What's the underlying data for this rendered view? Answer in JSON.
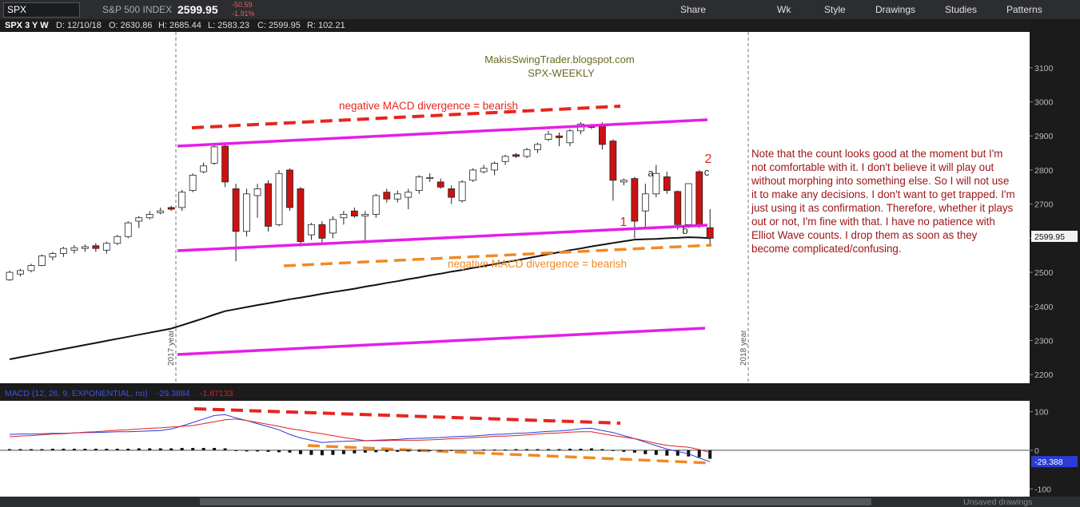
{
  "toolbar": {
    "symbol": "SPX",
    "description": "S&P 500 INDEX",
    "last": "2599.95",
    "change": "-50.59",
    "change_pct": "-1.91%",
    "buttons": [
      "Share",
      "Wk",
      "Style",
      "Drawings",
      "Studies",
      "Patterns"
    ]
  },
  "info_bar": {
    "symbol": "SPX 3 Y W",
    "fields": [
      "D: 12/10/18",
      "O: 2630.86",
      "H: 2685.44",
      "L: 2583.23",
      "C: 2599.95",
      "R: 102.21"
    ]
  },
  "chart_data": [
    {
      "type": "candlestick",
      "title": "MakisSwingTrader.blogspot.com",
      "subtitle": "SPX-WEEKLY",
      "annotations": [
        "negative MACD divergence = bearish",
        "negative MACD divergence = bearish",
        "1",
        "2",
        "a",
        "b",
        "c"
      ],
      "note": "Note that the count looks good at the moment but I'm not comfortable with it. I don't believe it will play out without morphing into something else. So I will not use it to make any decisions. I don't want to get trapped. I'm just using it as confirmation. Therefore, whether it plays out or not, I'm fine with that. I have no patience with Elliot Wave counts. I drop them as soon as they become complicated/confusing.",
      "year_labels": [
        "2017 year",
        "2018 year"
      ],
      "up_color": "#ffffff",
      "down_color": "#cc1111",
      "open": [
        2478,
        2495,
        2505,
        2520,
        2545,
        2555,
        2565,
        2570,
        2578,
        2565,
        2585,
        2605,
        2650,
        2660,
        2675,
        2690,
        2690,
        2740,
        2795,
        2820,
        2870,
        2745,
        2620,
        2725,
        2760,
        2640,
        2800,
        2745,
        2610,
        2640,
        2615,
        2660,
        2680,
        2665,
        2670,
        2735,
        2715,
        2720,
        2740,
        2775,
        2765,
        2745,
        2710,
        2770,
        2795,
        2800,
        2825,
        2845,
        2840,
        2860,
        2890,
        2900,
        2880,
        2915,
        2930,
        2930,
        2885,
        2765,
        2775,
        2680,
        2730,
        2780,
        2737,
        2640,
        2795,
        2630.86
      ],
      "high": [
        2505,
        2510,
        2525,
        2552,
        2560,
        2575,
        2580,
        2582,
        2585,
        2590,
        2610,
        2650,
        2665,
        2680,
        2690,
        2695,
        2742,
        2790,
        2822,
        2875,
        2878,
        2760,
        2745,
        2760,
        2770,
        2800,
        2805,
        2750,
        2645,
        2650,
        2665,
        2680,
        2690,
        2680,
        2730,
        2745,
        2740,
        2745,
        2785,
        2790,
        2775,
        2755,
        2770,
        2805,
        2815,
        2825,
        2845,
        2850,
        2865,
        2880,
        2915,
        2910,
        2920,
        2940,
        2935,
        2940,
        2890,
        2775,
        2780,
        2760,
        2815,
        2795,
        2740,
        2760,
        2800,
        2685.44
      ],
      "low": [
        2475,
        2488,
        2500,
        2518,
        2535,
        2545,
        2555,
        2560,
        2560,
        2555,
        2580,
        2600,
        2630,
        2655,
        2670,
        2680,
        2680,
        2735,
        2790,
        2815,
        2750,
        2532,
        2605,
        2660,
        2620,
        2635,
        2680,
        2575,
        2595,
        2585,
        2600,
        2640,
        2660,
        2590,
        2660,
        2705,
        2705,
        2685,
        2730,
        2765,
        2745,
        2700,
        2705,
        2765,
        2790,
        2785,
        2815,
        2835,
        2835,
        2850,
        2885,
        2870,
        2870,
        2905,
        2920,
        2860,
        2710,
        2755,
        2600,
        2630,
        2720,
        2730,
        2625,
        2630,
        2630,
        2583.23
      ],
      "close": [
        2500,
        2505,
        2520,
        2548,
        2555,
        2570,
        2572,
        2575,
        2570,
        2585,
        2605,
        2645,
        2660,
        2670,
        2680,
        2685,
        2735,
        2785,
        2812,
        2868,
        2765,
        2620,
        2730,
        2745,
        2635,
        2790,
        2690,
        2590,
        2640,
        2600,
        2655,
        2670,
        2665,
        2670,
        2725,
        2715,
        2730,
        2735,
        2780,
        2778,
        2750,
        2720,
        2765,
        2800,
        2805,
        2820,
        2840,
        2840,
        2860,
        2875,
        2905,
        2895,
        2915,
        2935,
        2925,
        2875,
        2770,
        2770,
        2650,
        2730,
        2790,
        2740,
        2640,
        2760,
        2635,
        2599.95
      ],
      "ma": {
        "color": "#111111",
        "values": [
          2245,
          2251,
          2257,
          2263,
          2269,
          2275,
          2281,
          2287,
          2293,
          2299,
          2305,
          2311,
          2317,
          2323,
          2329,
          2335,
          2345,
          2355,
          2365,
          2376,
          2386,
          2392,
          2398,
          2404,
          2409,
          2415,
          2421,
          2426,
          2431,
          2437,
          2442,
          2447,
          2452,
          2458,
          2463,
          2469,
          2474,
          2480,
          2485,
          2491,
          2496,
          2502,
          2507,
          2513,
          2518,
          2524,
          2530,
          2535,
          2541,
          2547,
          2553,
          2559,
          2565,
          2570,
          2576,
          2581,
          2586,
          2591,
          2596,
          2597,
          2598,
          2600,
          2601,
          2603,
          2602,
          2600
        ]
      },
      "ylim": [
        2177,
        3205
      ],
      "yticks": [
        2200,
        2300,
        2400,
        2500,
        2600,
        2700,
        2800,
        2900,
        3000,
        3100
      ]
    },
    {
      "type": "macd",
      "title": "MACD (12, 26, 9, EXPONENTIAL, no)",
      "readouts": [
        "-29.3884",
        "-1.67133"
      ],
      "last_label": "-29.388",
      "ylim": [
        -120,
        126
      ],
      "yticks": [
        100,
        0,
        -100
      ],
      "series": [
        {
          "color": "#2a3bd6",
          "values": [
            41,
            42,
            42,
            43,
            44,
            44,
            45,
            46,
            46,
            47,
            48,
            48,
            49,
            50,
            51,
            55,
            63,
            72,
            81,
            90,
            92,
            84,
            77,
            69,
            61,
            53,
            41,
            32,
            26,
            20,
            22,
            23,
            24,
            25,
            26,
            27,
            28,
            30,
            31,
            32,
            33,
            35,
            36,
            37,
            39,
            41,
            42,
            44,
            45,
            47,
            49,
            50,
            52,
            56,
            57,
            51,
            46,
            38,
            30,
            21,
            12,
            3,
            -3,
            -9,
            -20,
            -29.388
          ]
        },
        {
          "color": "#e02020",
          "values": [
            35,
            37,
            38,
            40,
            42,
            43,
            45,
            47,
            48,
            50,
            52,
            53,
            55,
            57,
            58,
            60,
            62,
            64,
            69,
            74,
            79,
            81,
            77,
            72,
            67,
            62,
            56,
            52,
            47,
            43,
            38,
            33,
            29,
            25,
            25,
            25,
            26,
            26,
            26,
            27,
            28,
            30,
            31,
            33,
            34,
            36,
            37,
            38,
            40,
            42,
            44,
            45,
            47,
            48,
            48,
            43,
            38,
            34,
            30,
            24,
            18,
            13,
            10,
            8,
            2,
            -6
          ]
        }
      ],
      "hist": {
        "color": "#111111",
        "values": [
          3,
          3,
          3,
          3,
          4,
          4,
          4,
          4,
          4,
          4,
          4,
          4,
          5,
          5,
          5,
          5,
          6,
          6,
          6,
          6,
          5,
          -2,
          -3,
          -3,
          -4,
          -5,
          -6,
          -10,
          -12,
          -13,
          -12,
          -10,
          -8,
          -6,
          -5,
          -4,
          -4,
          -3,
          -3,
          -2,
          -2,
          -2,
          -1,
          -1,
          2,
          2,
          2,
          3,
          3,
          3,
          3,
          3,
          4,
          4,
          5,
          3,
          -2,
          -4,
          -6,
          -10,
          -12,
          -14,
          -14,
          -16,
          -18,
          -22
        ]
      }
    }
  ],
  "bottom_bar": {
    "status": "Unsaved drawings"
  }
}
